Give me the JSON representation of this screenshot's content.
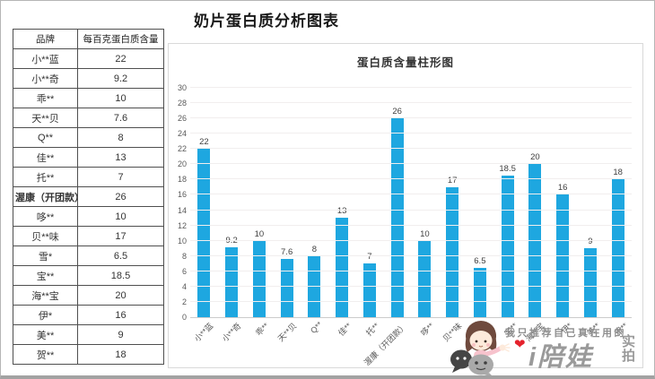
{
  "page": {
    "title": "奶片蛋白质分析图表"
  },
  "table": {
    "headers": [
      "品牌",
      "每百克蛋白质含量"
    ],
    "rows": [
      {
        "brand": "小**蓝",
        "value": "22",
        "bold": false
      },
      {
        "brand": "小**奇",
        "value": "9.2",
        "bold": false
      },
      {
        "brand": "乖**",
        "value": "10",
        "bold": false
      },
      {
        "brand": "天**贝",
        "value": "7.6",
        "bold": false
      },
      {
        "brand": "Q**",
        "value": "8",
        "bold": false
      },
      {
        "brand": "佳**",
        "value": "13",
        "bold": false
      },
      {
        "brand": "托**",
        "value": "7",
        "bold": false
      },
      {
        "brand": "渥康（开团款）",
        "value": "26",
        "bold": true
      },
      {
        "brand": "哆**",
        "value": "10",
        "bold": false
      },
      {
        "brand": "贝**味",
        "value": "17",
        "bold": false
      },
      {
        "brand": "雪*",
        "value": "6.5",
        "bold": false
      },
      {
        "brand": "宝**",
        "value": "18.5",
        "bold": false
      },
      {
        "brand": "海**宝",
        "value": "20",
        "bold": false
      },
      {
        "brand": "伊*",
        "value": "16",
        "bold": false
      },
      {
        "brand": "美**",
        "value": "9",
        "bold": false
      },
      {
        "brand": "贺**",
        "value": "18",
        "bold": false
      }
    ]
  },
  "chart_data": {
    "type": "bar",
    "title": "蛋白质含量柱形图",
    "categories": [
      "小**蓝",
      "小**奇",
      "乖**",
      "天**贝",
      "Q**",
      "佳**",
      "托**",
      "渥康（开团款）",
      "哆**",
      "贝**味",
      "雪*",
      "宝**",
      "海**宝",
      "伊*",
      "美**",
      "贺**"
    ],
    "values": [
      22,
      9.2,
      10,
      7.6,
      8,
      13,
      7,
      26,
      10,
      17,
      6.5,
      18.5,
      20,
      16,
      9,
      18
    ],
    "ylim": [
      0,
      30
    ],
    "ytick_step": 2,
    "grid": true,
    "legend": "none",
    "bar_color": "#1ea7e0",
    "grid_color": "#f1eeee",
    "axis_label_color": "#595959",
    "data_label_color": "#3f3f3f"
  },
  "watermark": {
    "slogan": "我只推荐自己真在用的",
    "logo": "i陪娃",
    "stamp": "实拍",
    "heart": "❤",
    "logo_color": "#9a9a9a",
    "heart_color": "#e5232d"
  }
}
